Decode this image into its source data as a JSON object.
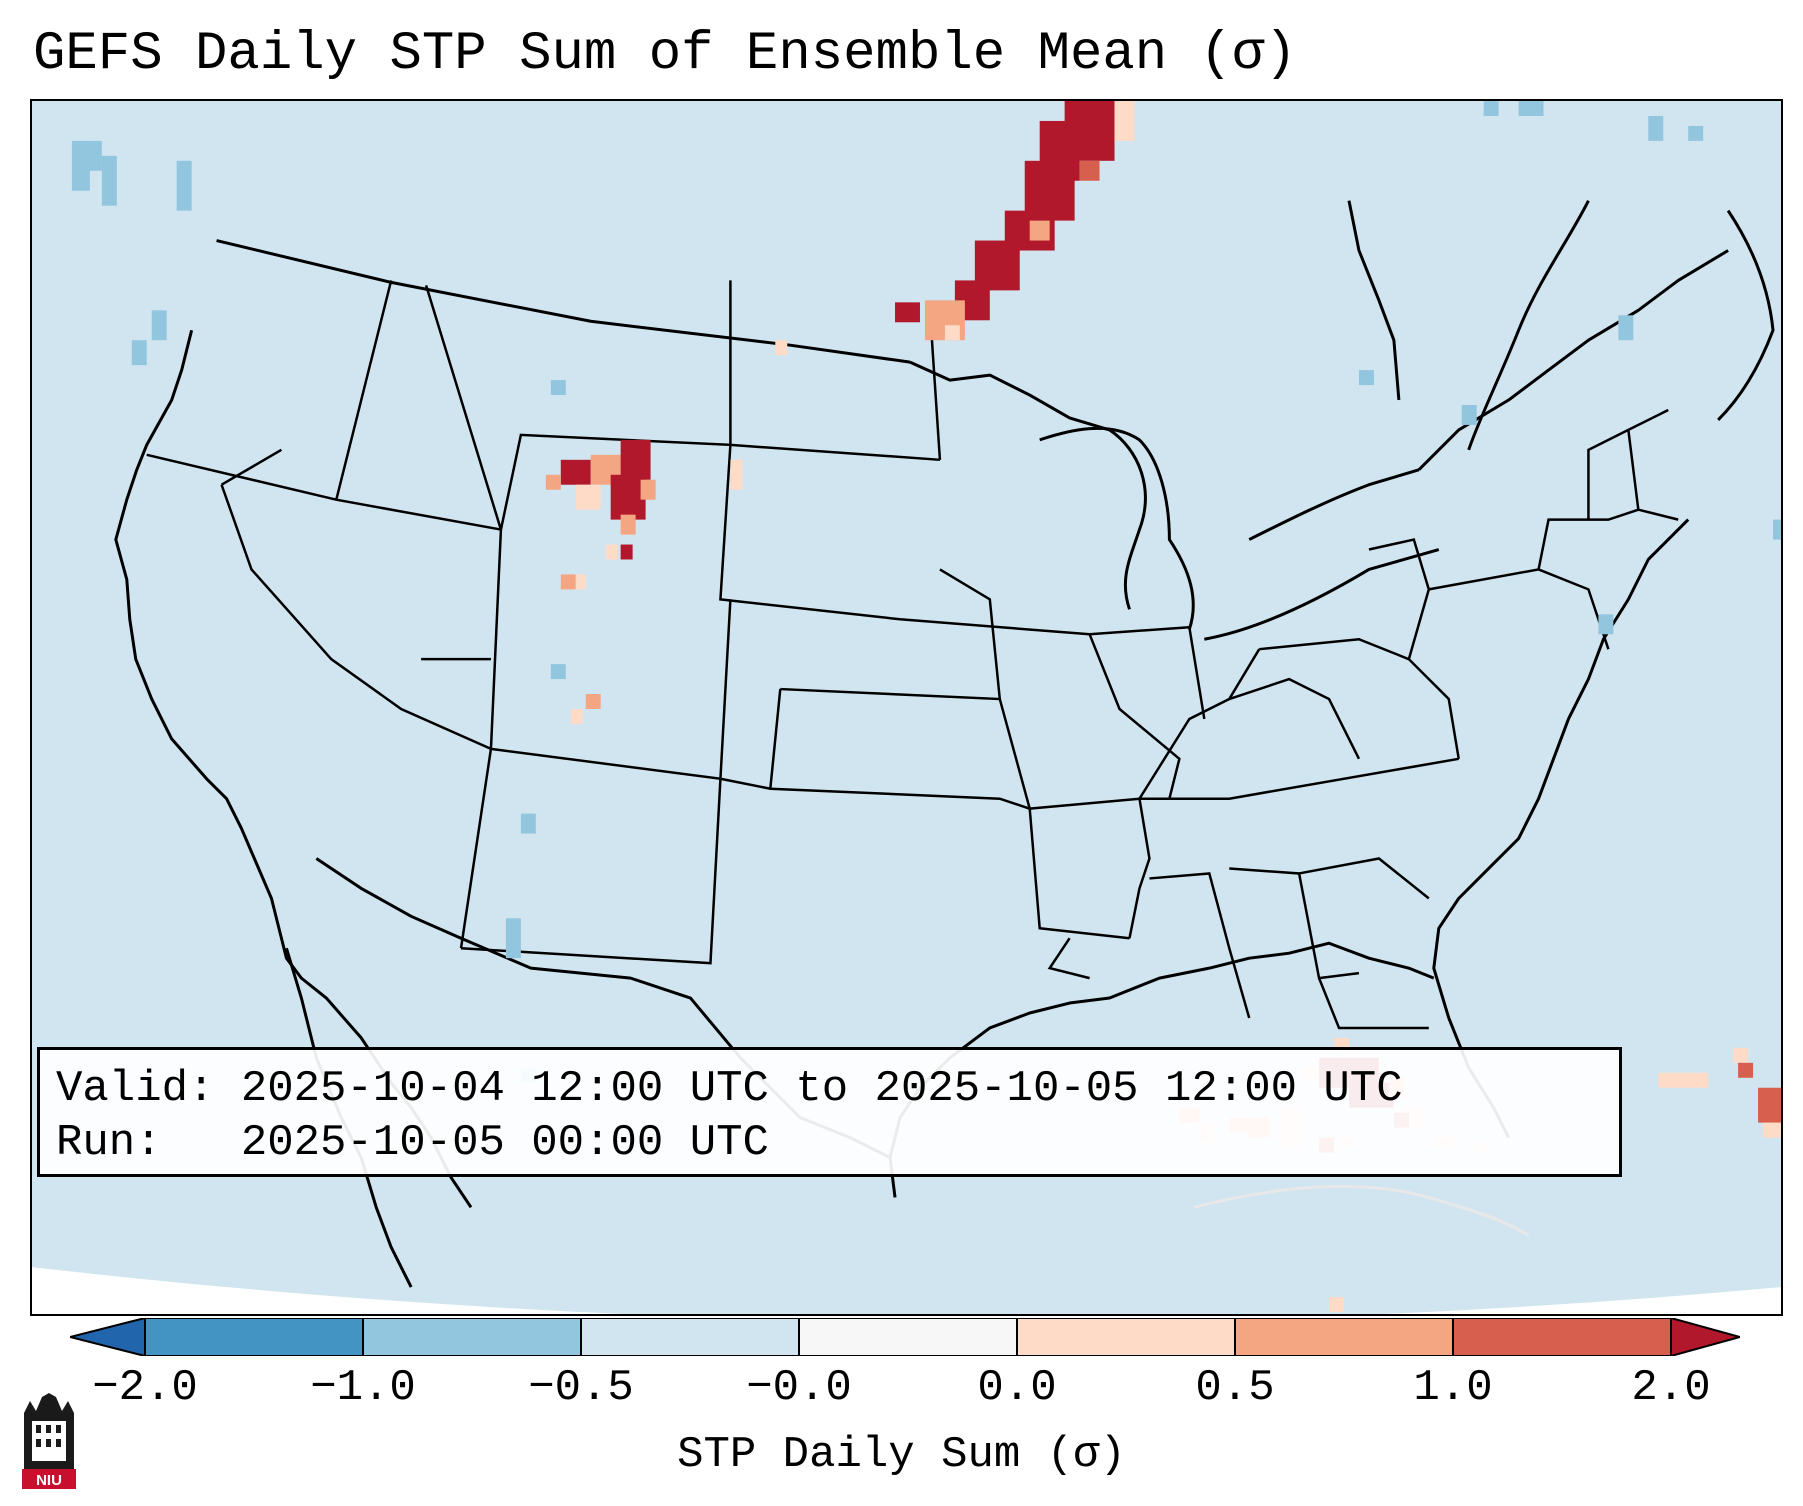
{
  "title": "GEFS Daily STP Sum of Ensemble Mean (σ)",
  "info": {
    "valid_line": "Valid: 2025-10-04 12:00 UTC to 2025-10-05 12:00 UTC",
    "run_line": "Run:   2025-10-05 00:00 UTC"
  },
  "colorbar": {
    "label": "STP Daily Sum (σ)",
    "ticks": [
      "−2.0",
      "−1.0",
      "−0.5",
      "−0.0",
      "0.0",
      "0.5",
      "1.0",
      "2.0"
    ],
    "colors": [
      "#2166ac",
      "#4393c3",
      "#92c5de",
      "#d1e5f0",
      "#f7f7f7",
      "#fddbc7",
      "#f4a582",
      "#d6604d",
      "#b2182b"
    ]
  },
  "map": {
    "background_color": "#d1e5f0",
    "outline_color": "#000000"
  },
  "logo": {
    "text": "NIU",
    "icon": "niu-tower-logo-icon"
  }
}
